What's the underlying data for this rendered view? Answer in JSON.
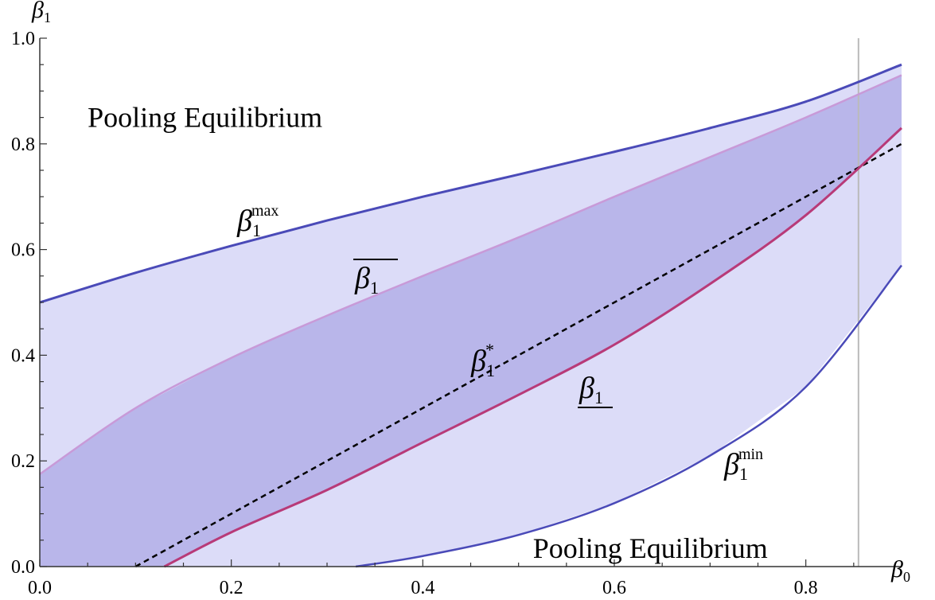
{
  "chart_data": {
    "type": "area",
    "xlabel": "β0",
    "ylabel": "β1",
    "xlim": [
      0.0,
      0.9
    ],
    "ylim": [
      0.0,
      1.0
    ],
    "x_ticks": [
      "0.0",
      "0.2",
      "0.4",
      "0.6",
      "0.8"
    ],
    "x_tick_values": [
      0.0,
      0.2,
      0.4,
      0.6,
      0.8
    ],
    "y_ticks": [
      "0.0",
      "0.2",
      "0.4",
      "0.6",
      "0.8",
      "1.0"
    ],
    "y_tick_values": [
      0.0,
      0.2,
      0.4,
      0.6,
      0.8,
      1.0
    ],
    "vertical_line_x": 0.855,
    "colors": {
      "light_fill": "#dcdcf8",
      "dark_fill": "#b9b6ea",
      "max_min_line": "#4a4ab8",
      "upper_bar_line": "#c89ad8",
      "lower_bar_line": "#b83a78",
      "star_line": "#000000",
      "vline": "#bbbbbb"
    },
    "series": [
      {
        "key": "beta_max",
        "label_base": "β",
        "label_sub": "1",
        "label_sup": "max",
        "x": [
          0.0,
          0.1,
          0.2,
          0.3,
          0.4,
          0.5,
          0.6,
          0.7,
          0.8,
          0.9
        ],
        "y": [
          0.5,
          0.556,
          0.607,
          0.655,
          0.7,
          0.742,
          0.785,
          0.83,
          0.88,
          0.95
        ]
      },
      {
        "key": "beta_upper_bar",
        "label_base": "β",
        "label_sub": "1",
        "x": [
          0.0,
          0.1,
          0.2,
          0.3,
          0.4,
          0.5,
          0.6,
          0.7,
          0.8,
          0.9
        ],
        "y": [
          0.175,
          0.3,
          0.395,
          0.475,
          0.55,
          0.623,
          0.7,
          0.775,
          0.85,
          0.93
        ]
      },
      {
        "key": "beta_star",
        "label_base": "β",
        "label_sub": "1",
        "label_sup": "*",
        "x": [
          0.1,
          0.9
        ],
        "y": [
          0.0,
          0.8
        ]
      },
      {
        "key": "beta_lower_bar",
        "label_base": "β",
        "label_sub": "1",
        "x": [
          0.13,
          0.2,
          0.3,
          0.4,
          0.5,
          0.6,
          0.7,
          0.8,
          0.9
        ],
        "y": [
          0.0,
          0.065,
          0.145,
          0.235,
          0.325,
          0.42,
          0.535,
          0.665,
          0.83
        ]
      },
      {
        "key": "beta_min",
        "label_base": "β",
        "label_sub": "1",
        "label_sup": "min",
        "x": [
          0.33,
          0.4,
          0.5,
          0.6,
          0.7,
          0.8,
          0.9
        ],
        "y": [
          0.0,
          0.02,
          0.06,
          0.12,
          0.21,
          0.34,
          0.57
        ]
      }
    ],
    "annotations": [
      {
        "key": "pooling_top",
        "text": "Pooling Equilibrium",
        "x": 0.05,
        "y": 0.85
      },
      {
        "key": "pooling_bottom",
        "text": "Pooling Equilibrium",
        "x": 0.515,
        "y": 0.035
      }
    ]
  }
}
